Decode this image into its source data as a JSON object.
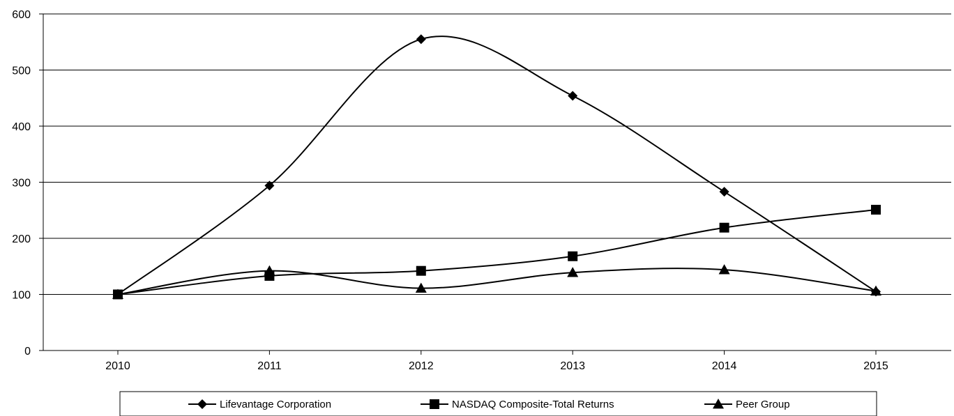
{
  "chart_data": {
    "type": "line",
    "title": "",
    "xlabel": "",
    "ylabel": "",
    "categories": [
      "2010",
      "2011",
      "2012",
      "2013",
      "2014",
      "2015"
    ],
    "ylim": [
      0,
      600
    ],
    "yticks": [
      0,
      100,
      200,
      300,
      400,
      500,
      600
    ],
    "grid": "horizontal",
    "smooth": true,
    "legend_position": "bottom",
    "series": [
      {
        "name": "Lifevantage Corporation",
        "marker": "diamond",
        "color": "#000000",
        "values": [
          100,
          294,
          555,
          454,
          283,
          105
        ]
      },
      {
        "name": "NASDAQ Composite-Total Returns",
        "marker": "square",
        "color": "#000000",
        "values": [
          100,
          133,
          142,
          168,
          219,
          251
        ]
      },
      {
        "name": "Peer Group",
        "marker": "triangle",
        "color": "#000000",
        "values": [
          100,
          142,
          111,
          139,
          144,
          106
        ]
      }
    ]
  }
}
